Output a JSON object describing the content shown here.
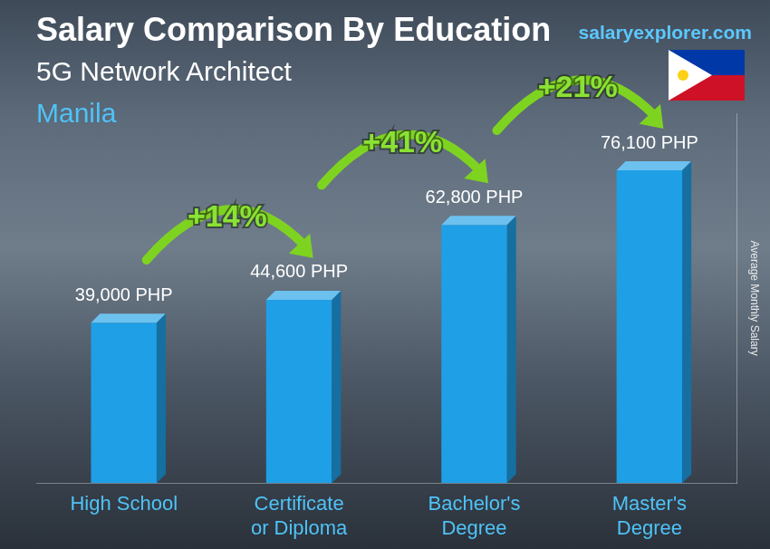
{
  "chart_data": {
    "type": "bar",
    "title": "Salary Comparison By Education",
    "subtitle": "5G Network Architect",
    "location": "Manila",
    "watermark": "salaryexplorer.com",
    "y_label": "Average Monthly Salary",
    "categories": [
      "High School",
      "Certificate or Diploma",
      "Bachelor's Degree",
      "Master's Degree"
    ],
    "values": [
      39000,
      44600,
      62800,
      76100
    ],
    "value_labels": [
      "39,000 PHP",
      "44,600 PHP",
      "62,800 PHP",
      "76,100 PHP"
    ],
    "annotations": [
      "+14%",
      "+41%",
      "+21%"
    ],
    "color": "#1e9fe6",
    "ylim": [
      0,
      90000
    ],
    "grid": false,
    "data_labels": true,
    "tick_labels": "x"
  }
}
